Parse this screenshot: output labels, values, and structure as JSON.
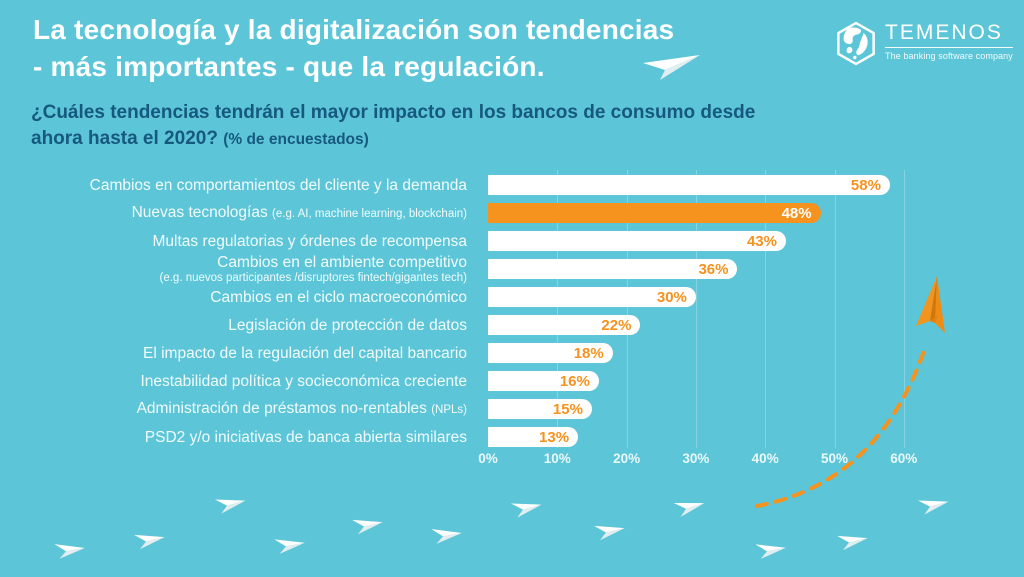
{
  "page": {
    "title_line1": "La tecnología y la digitalización son tendencias",
    "title_line2": "- más importantes - que la regulación.",
    "subtitle_line1": "¿Cuáles tendencias tendrán el mayor impacto en los bancos de consumo desde",
    "subtitle_line2": "ahora hasta el 2020?",
    "subtitle_note": "(% de encuestados)"
  },
  "logo": {
    "name": "TEMENOS",
    "tagline": "The banking software company",
    "icon": "temenos-globe-icon"
  },
  "colors": {
    "background": "#5CC6D8",
    "accent_orange": "#F6921E",
    "bar_fill": "#FFFFFF",
    "subtitle_navy": "#17597E"
  },
  "chart_data": {
    "type": "bar",
    "orientation": "horizontal",
    "unit": "%",
    "xlim": [
      0,
      60
    ],
    "x_ticks": [
      "0%",
      "10%",
      "20%",
      "30%",
      "40%",
      "50%",
      "60%"
    ],
    "gridlines": true,
    "highlight_index": 1,
    "categories": [
      "Cambios en comportamientos del cliente y la demanda",
      "Nuevas tecnologías (e.g. AI, machine learning, blockchain)",
      "Multas regulatorias y órdenes de recompensa",
      "Cambios en el ambiente competitivo (e.g. nuevos participantes /disruptores fintech/gigantes tech)",
      "Cambios en el ciclo macroeconómico",
      "Legislación de protección de datos",
      "El impacto de la regulación del capital bancario",
      "Inestabilidad política y socieconómica creciente",
      "Administración de préstamos no-rentables (NPLs)",
      "PSD2 y/o iniciativas de banca abierta similares"
    ],
    "values": [
      58,
      48,
      43,
      36,
      30,
      22,
      18,
      16,
      15,
      13
    ],
    "rows": [
      {
        "label": "Cambios en comportamientos del cliente y la demanda",
        "small": "",
        "sub": "",
        "value": 58,
        "highlight": false
      },
      {
        "label": "Nuevas tecnologías",
        "small": "(e.g. AI, machine learning, blockchain)",
        "sub": "",
        "value": 48,
        "highlight": true
      },
      {
        "label": "Multas regulatorias y órdenes de recompensa",
        "small": "",
        "sub": "",
        "value": 43,
        "highlight": false
      },
      {
        "label": "Cambios en el ambiente competitivo",
        "small": "",
        "sub": "(e.g. nuevos participantes /disruptores fintech/gigantes tech)",
        "value": 36,
        "highlight": false
      },
      {
        "label": "Cambios en el ciclo macroeconómico",
        "small": "",
        "sub": "",
        "value": 30,
        "highlight": false
      },
      {
        "label": "Legislación de protección de datos",
        "small": "",
        "sub": "",
        "value": 22,
        "highlight": false
      },
      {
        "label": "El impacto de la regulación del capital bancario",
        "small": "",
        "sub": "",
        "value": 18,
        "highlight": false
      },
      {
        "label": "Inestabilidad política y socieconómica creciente",
        "small": "",
        "sub": "",
        "value": 16,
        "highlight": false
      },
      {
        "label": "Administración de préstamos no-rentables",
        "small": "(NPLs)",
        "sub": "",
        "value": 15,
        "highlight": false
      },
      {
        "label": "PSD2 y/o iniciativas de banca abierta similares",
        "small": "",
        "sub": "",
        "value": 13,
        "highlight": false
      }
    ]
  },
  "decor": {
    "white_plane_icon": "paper-plane-icon",
    "orange_plane_icon": "orange-paper-plane-icon",
    "trajectory_style": "orange-dashed-curve"
  }
}
